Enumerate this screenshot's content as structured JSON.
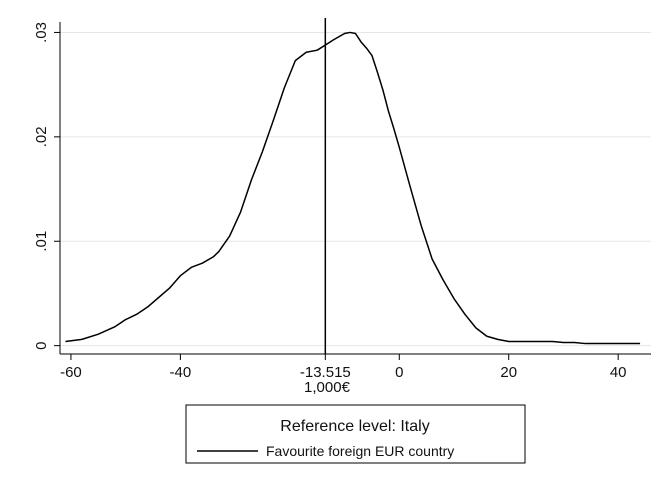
{
  "chart_data": {
    "type": "line",
    "title": "",
    "xlabel": "1,000€",
    "ylabel": "",
    "xlim": [
      -62,
      46
    ],
    "ylim": [
      -0.0008,
      0.031
    ],
    "x_ticks": [
      {
        "value": -60,
        "label": "-60"
      },
      {
        "value": -40,
        "label": "-40"
      },
      {
        "value": -13.515,
        "label": "-13.515"
      },
      {
        "value": 0,
        "label": "0"
      },
      {
        "value": 20,
        "label": "20"
      },
      {
        "value": 40,
        "label": "40"
      }
    ],
    "y_ticks": [
      {
        "value": 0,
        "label": "0"
      },
      {
        "value": 0.01,
        "label": ".01"
      },
      {
        "value": 0.02,
        "label": ".02"
      },
      {
        "value": 0.03,
        "label": ".03"
      }
    ],
    "grid": true,
    "reference_line": {
      "x": -13.515
    },
    "legend": {
      "title": "Reference level: Italy",
      "placement": "bottom-center",
      "entries": [
        "Favourite foreign EUR country"
      ]
    },
    "series": [
      {
        "name": "Favourite foreign EUR country",
        "color": "#000000",
        "x": [
          -61,
          -58,
          -55,
          -52,
          -50,
          -48,
          -46,
          -44,
          -42,
          -40,
          -38,
          -36,
          -34,
          -33,
          -31,
          -29,
          -27,
          -25,
          -23,
          -21,
          -19,
          -17,
          -15,
          -13.5,
          -12,
          -11,
          -10,
          -9,
          -8,
          -7,
          -6,
          -5,
          -4,
          -3,
          -2,
          -1,
          0,
          2,
          4,
          6,
          8,
          10,
          12,
          14,
          16,
          18,
          20,
          22,
          24,
          26,
          28,
          30,
          32,
          34,
          36,
          38,
          40,
          42,
          44
        ],
        "y": [
          0.0004,
          0.0006,
          0.0011,
          0.0018,
          0.0025,
          0.003,
          0.0037,
          0.0046,
          0.0055,
          0.0067,
          0.0075,
          0.0079,
          0.0085,
          0.009,
          0.0105,
          0.0128,
          0.0159,
          0.0186,
          0.0216,
          0.0247,
          0.0273,
          0.0281,
          0.0283,
          0.0288,
          0.0293,
          0.0296,
          0.0299,
          0.03,
          0.0299,
          0.0291,
          0.0285,
          0.0278,
          0.0262,
          0.0245,
          0.0225,
          0.0208,
          0.019,
          0.0152,
          0.0115,
          0.0083,
          0.0063,
          0.0045,
          0.003,
          0.0017,
          0.0009,
          0.0006,
          0.0004,
          0.0004,
          0.0004,
          0.0004,
          0.0004,
          0.0003,
          0.0003,
          0.0002,
          0.0002,
          0.0002,
          0.0002,
          0.0002,
          0.0002
        ]
      }
    ]
  }
}
